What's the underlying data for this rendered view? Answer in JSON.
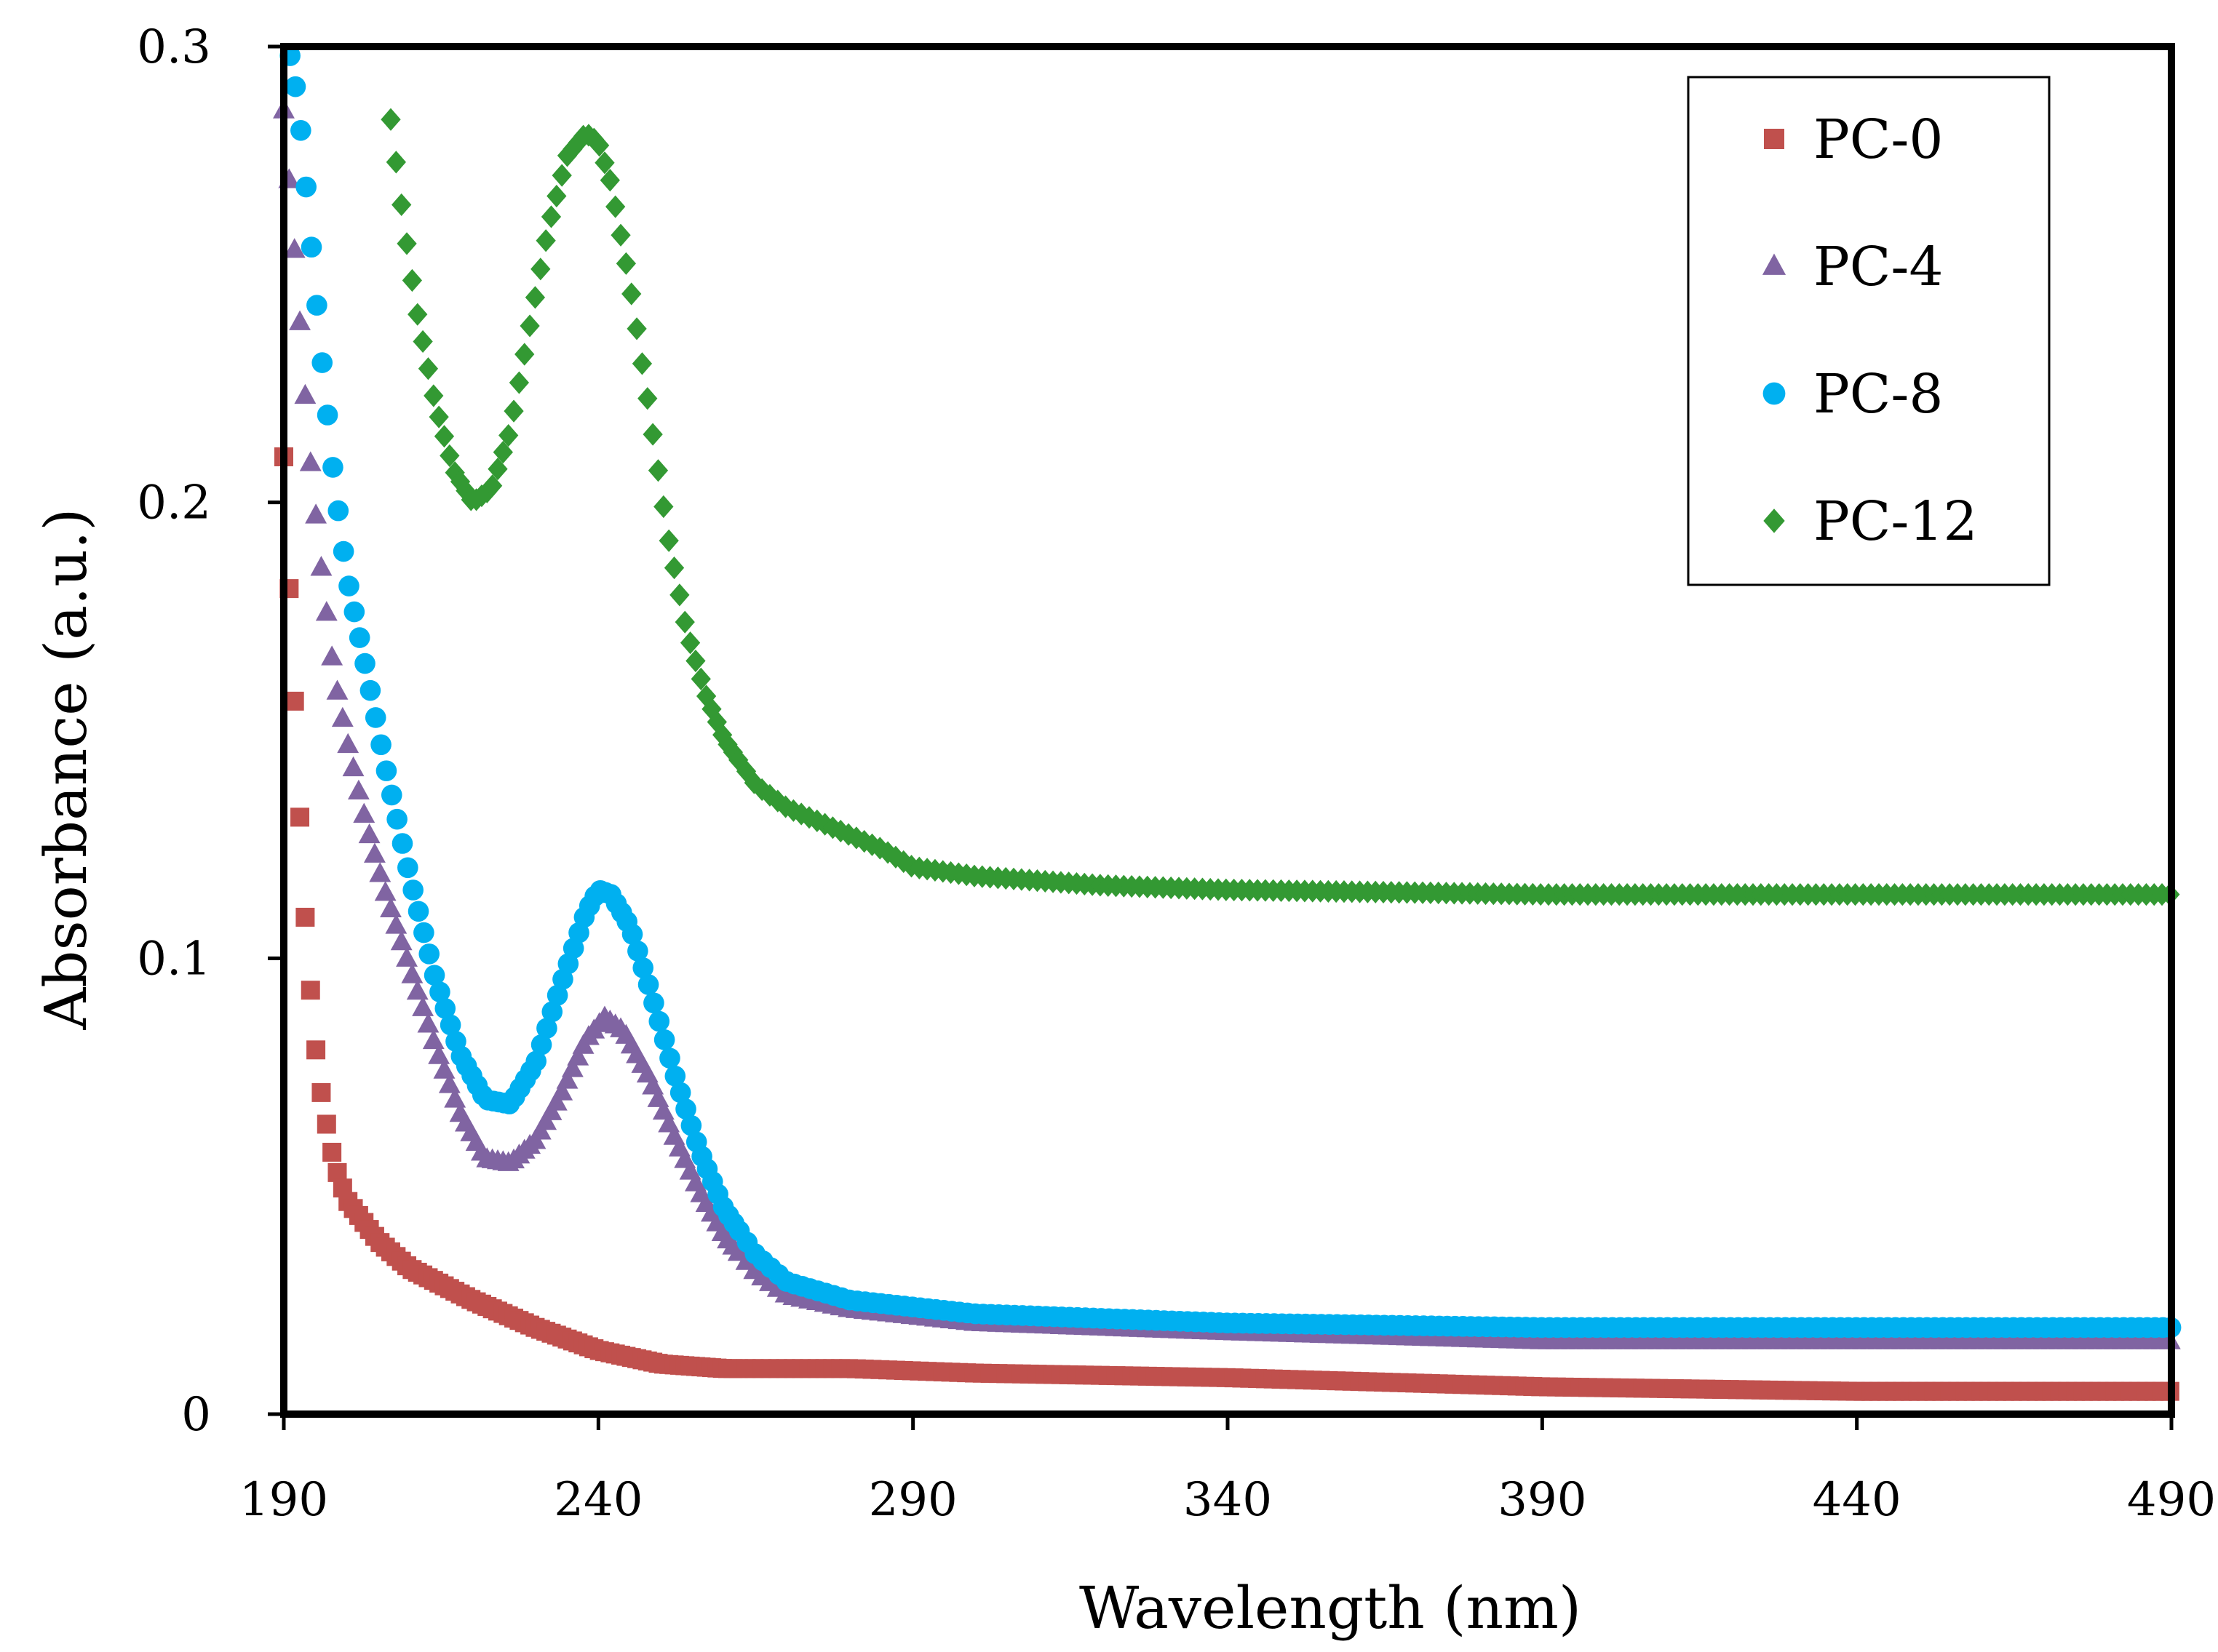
{
  "chart_data": {
    "type": "scatter",
    "title": "",
    "xlabel": "Wavelength (nm)",
    "ylabel": "Absorbance (a.u.)",
    "xlim": [
      190,
      490
    ],
    "ylim": [
      0,
      0.3
    ],
    "grid": false,
    "legend_position": "top-right",
    "x_ticks": [
      190,
      240,
      290,
      340,
      390,
      440,
      490
    ],
    "x_tick_labels": [
      "190",
      "240",
      "290",
      "340",
      "390",
      "440",
      "490"
    ],
    "y_ticks": [
      0,
      0.1,
      0.2,
      0.3
    ],
    "y_tick_labels": [
      "0",
      "0.1",
      "0.2",
      "0.3"
    ],
    "series": [
      {
        "name": "PC-0",
        "marker": "square",
        "color": "#c0504d",
        "x": [
          190,
          191,
          192,
          193,
          194,
          195,
          196,
          197,
          198,
          200,
          205,
          210,
          220,
          230,
          240,
          250,
          260,
          280,
          300,
          340,
          390,
          440,
          490
        ],
        "y": [
          0.21,
          0.176,
          0.148,
          0.117,
          0.097,
          0.081,
          0.07,
          0.062,
          0.055,
          0.047,
          0.038,
          0.032,
          0.025,
          0.019,
          0.014,
          0.011,
          0.01,
          0.01,
          0.009,
          0.008,
          0.006,
          0.005,
          0.005
        ]
      },
      {
        "name": "PC-4",
        "marker": "triangle",
        "color": "#8064a2",
        "x": [
          190,
          192,
          194,
          196,
          198,
          200,
          203,
          206,
          210,
          214,
          218,
          222,
          226,
          230,
          234,
          238,
          241,
          244,
          248,
          252,
          256,
          260,
          265,
          270,
          280,
          300,
          340,
          390,
          440,
          490
        ],
        "y": [
          0.286,
          0.25,
          0.212,
          0.185,
          0.162,
          0.148,
          0.13,
          0.115,
          0.098,
          0.081,
          0.066,
          0.056,
          0.055,
          0.06,
          0.07,
          0.082,
          0.087,
          0.084,
          0.074,
          0.061,
          0.049,
          0.039,
          0.031,
          0.026,
          0.023,
          0.02,
          0.018,
          0.016,
          0.016,
          0.016
        ]
      },
      {
        "name": "PC-8",
        "marker": "circle",
        "color": "#00b0f0",
        "x": [
          191,
          192,
          193,
          194,
          196,
          198,
          200,
          203,
          206,
          210,
          214,
          218,
          222,
          226,
          230,
          234,
          238,
          240,
          242,
          245,
          248,
          252,
          256,
          260,
          265,
          270,
          280,
          300,
          340,
          390,
          440,
          490
        ],
        "y": [
          0.298,
          0.29,
          0.278,
          0.262,
          0.232,
          0.205,
          0.184,
          0.164,
          0.143,
          0.118,
          0.096,
          0.079,
          0.069,
          0.068,
          0.077,
          0.094,
          0.11,
          0.115,
          0.114,
          0.107,
          0.094,
          0.075,
          0.058,
          0.045,
          0.035,
          0.029,
          0.025,
          0.022,
          0.02,
          0.019,
          0.019,
          0.019
        ]
      },
      {
        "name": "PC-12",
        "marker": "diamond",
        "color": "#339933",
        "x": [
          207,
          209,
          211,
          214,
          217,
          220,
          223,
          226,
          229,
          232,
          235,
          238,
          240,
          242,
          245,
          248,
          251,
          254,
          257,
          260,
          265,
          270,
          275,
          280,
          285,
          290,
          300,
          320,
          340,
          390,
          440,
          490
        ],
        "y": [
          0.284,
          0.262,
          0.243,
          0.222,
          0.207,
          0.2,
          0.203,
          0.216,
          0.238,
          0.26,
          0.276,
          0.281,
          0.279,
          0.27,
          0.248,
          0.221,
          0.193,
          0.172,
          0.158,
          0.148,
          0.138,
          0.133,
          0.13,
          0.127,
          0.124,
          0.12,
          0.118,
          0.116,
          0.115,
          0.114,
          0.114,
          0.114
        ]
      }
    ]
  }
}
